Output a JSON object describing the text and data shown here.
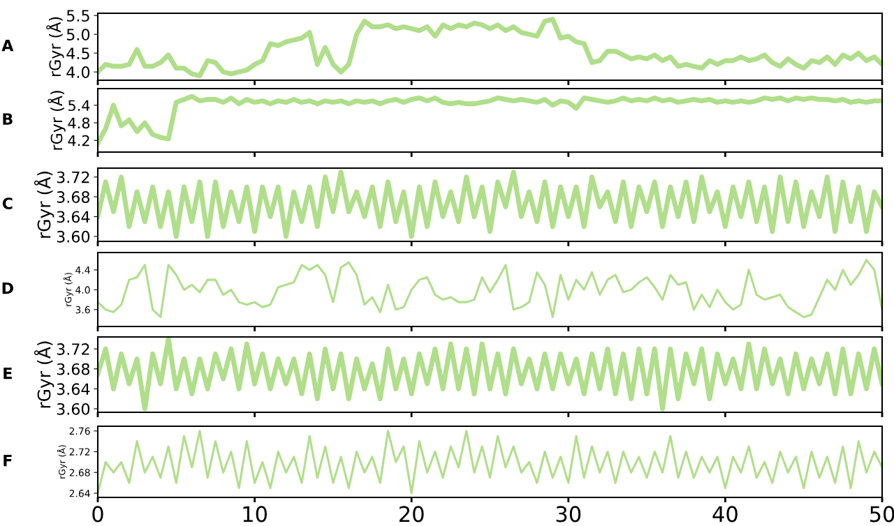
{
  "chart_data": [
    {
      "type": "line",
      "title": "A",
      "ylabel": "rGyr (Å)",
      "ylim": [
        3.78,
        5.56
      ],
      "yticks": [
        {
          "value": 4.0,
          "label": "4.0"
        },
        4.5,
        {
          "value": 5.0,
          "label": "5.0"
        },
        5.5
      ],
      "xlim": [
        0,
        50
      ],
      "xticks": [
        0,
        10,
        20,
        30,
        40,
        50
      ],
      "tick_labels": "y",
      "grid": false,
      "x": [
        0,
        0.5,
        1,
        1.5,
        2,
        2.5,
        3,
        3.5,
        4,
        4.5,
        5,
        5.5,
        6,
        6.5,
        7,
        7.5,
        8,
        8.5,
        9,
        9.5,
        10,
        10.5,
        11,
        11.5,
        12,
        12.5,
        13,
        13.5,
        14,
        14.5,
        15,
        15.5,
        16,
        16.5,
        17,
        17.5,
        18,
        18.5,
        19,
        19.5,
        20,
        20.5,
        21,
        21.5,
        22,
        22.5,
        23,
        23.5,
        24,
        24.5,
        25,
        25.5,
        26,
        26.5,
        27,
        27.5,
        28,
        28.5,
        29,
        29.5,
        30,
        30.5,
        31,
        31.5,
        32,
        32.5,
        33,
        33.5,
        34,
        34.5,
        35,
        35.5,
        36,
        36.5,
        37,
        37.5,
        38,
        38.5,
        39,
        39.5,
        40,
        40.5,
        41,
        41.5,
        42,
        42.5,
        43,
        43.5,
        44,
        44.5,
        45,
        45.5,
        46,
        46.5,
        47,
        47.5,
        48,
        48.5,
        49,
        49.5,
        50
      ],
      "series": [
        {
          "color": "#b0de8a",
          "values": [
            4.0,
            4.2,
            4.15,
            4.15,
            4.2,
            4.6,
            4.15,
            4.15,
            4.25,
            4.45,
            4.1,
            4.1,
            3.95,
            3.9,
            4.3,
            4.25,
            4.0,
            3.95,
            4.0,
            4.05,
            4.2,
            4.3,
            4.75,
            4.7,
            4.8,
            4.85,
            4.9,
            5.05,
            4.2,
            4.65,
            4.2,
            4.0,
            4.2,
            5.0,
            5.35,
            5.2,
            5.2,
            5.25,
            5.15,
            5.2,
            5.15,
            5.1,
            5.2,
            4.95,
            5.25,
            5.15,
            5.25,
            5.2,
            5.3,
            5.25,
            5.15,
            5.25,
            5.1,
            5.2,
            5.05,
            5.0,
            4.95,
            5.35,
            5.4,
            4.9,
            4.95,
            4.8,
            4.75,
            4.25,
            4.3,
            4.55,
            4.55,
            4.45,
            4.35,
            4.4,
            4.35,
            4.45,
            4.3,
            4.4,
            4.15,
            4.2,
            4.15,
            4.1,
            4.3,
            4.2,
            4.3,
            4.3,
            4.4,
            4.3,
            4.35,
            4.45,
            4.25,
            4.15,
            4.35,
            4.2,
            4.1,
            4.3,
            4.25,
            4.4,
            4.2,
            4.45,
            4.35,
            4.5,
            4.3,
            4.4,
            4.2
          ]
        }
      ]
    },
    {
      "type": "line",
      "title": "B",
      "ylabel": "rGyr (Å)",
      "ylim": [
        3.8,
        5.97
      ],
      "yticks": [
        4.2,
        4.8,
        5.4
      ],
      "xlim": [
        0,
        50
      ],
      "xticks": [
        0,
        10,
        20,
        30,
        40,
        50
      ],
      "tick_labels": "y",
      "grid": false,
      "x": [
        0,
        0.5,
        1,
        1.5,
        2,
        2.5,
        3,
        3.5,
        4,
        4.5,
        5,
        5.5,
        6,
        6.5,
        7,
        7.5,
        8,
        8.5,
        9,
        9.5,
        10,
        10.5,
        11,
        11.5,
        12,
        12.5,
        13,
        13.5,
        14,
        14.5,
        15,
        15.5,
        16,
        16.5,
        17,
        17.5,
        18,
        18.5,
        19,
        19.5,
        20,
        20.5,
        21,
        21.5,
        22,
        22.5,
        23,
        23.5,
        24,
        24.5,
        25,
        25.5,
        26,
        26.5,
        27,
        27.5,
        28,
        28.5,
        29,
        29.5,
        30,
        30.5,
        31,
        31.5,
        32,
        32.5,
        33,
        33.5,
        34,
        34.5,
        35,
        35.5,
        36,
        36.5,
        37,
        37.5,
        38,
        38.5,
        39,
        39.5,
        40,
        40.5,
        41,
        41.5,
        42,
        42.5,
        43,
        43.5,
        44,
        44.5,
        45,
        45.5,
        46,
        46.5,
        47,
        47.5,
        48,
        48.5,
        49,
        49.5,
        50
      ],
      "series": [
        {
          "color": "#b0de8a",
          "values": [
            4.1,
            4.6,
            5.4,
            4.7,
            4.9,
            4.5,
            4.8,
            4.4,
            4.3,
            4.25,
            5.5,
            5.6,
            5.7,
            5.55,
            5.6,
            5.6,
            5.5,
            5.65,
            5.45,
            5.6,
            5.5,
            5.55,
            5.45,
            5.55,
            5.5,
            5.6,
            5.5,
            5.55,
            5.45,
            5.55,
            5.5,
            5.55,
            5.45,
            5.55,
            5.5,
            5.55,
            5.45,
            5.55,
            5.6,
            5.5,
            5.6,
            5.65,
            5.55,
            5.65,
            5.5,
            5.45,
            5.5,
            5.45,
            5.45,
            5.5,
            5.55,
            5.65,
            5.6,
            5.55,
            5.6,
            5.55,
            5.5,
            5.6,
            5.4,
            5.55,
            5.5,
            5.3,
            5.65,
            5.6,
            5.55,
            5.5,
            5.55,
            5.65,
            5.55,
            5.6,
            5.55,
            5.65,
            5.55,
            5.6,
            5.5,
            5.55,
            5.6,
            5.55,
            5.6,
            5.5,
            5.55,
            5.5,
            5.55,
            5.5,
            5.55,
            5.65,
            5.6,
            5.65,
            5.55,
            5.65,
            5.6,
            5.65,
            5.6,
            5.6,
            5.55,
            5.6,
            5.5,
            5.55,
            5.5,
            5.55,
            5.55
          ]
        }
      ]
    },
    {
      "type": "line",
      "title": "C",
      "ylabel": "rGyr (Å)",
      "ylim": [
        3.59,
        3.738
      ],
      "yticks": [
        {
          "value": 3.6,
          "label": "3.60"
        },
        {
          "value": 3.64,
          "label": "3.64"
        },
        {
          "value": 3.68,
          "label": "3.68"
        },
        {
          "value": 3.72,
          "label": "3.72"
        }
      ],
      "xlim": [
        0,
        50
      ],
      "xticks": [
        0,
        10,
        20,
        30,
        40,
        50
      ],
      "tick_labels": "y",
      "grid": false,
      "x": [
        0,
        0.5,
        1,
        1.5,
        2,
        2.5,
        3,
        3.5,
        4,
        4.5,
        5,
        5.5,
        6,
        6.5,
        7,
        7.5,
        8,
        8.5,
        9,
        9.5,
        10,
        10.5,
        11,
        11.5,
        12,
        12.5,
        13,
        13.5,
        14,
        14.5,
        15,
        15.5,
        16,
        16.5,
        17,
        17.5,
        18,
        18.5,
        19,
        19.5,
        20,
        20.5,
        21,
        21.5,
        22,
        22.5,
        23,
        23.5,
        24,
        24.5,
        25,
        25.5,
        26,
        26.5,
        27,
        27.5,
        28,
        28.5,
        29,
        29.5,
        30,
        30.5,
        31,
        31.5,
        32,
        32.5,
        33,
        33.5,
        34,
        34.5,
        35,
        35.5,
        36,
        36.5,
        37,
        37.5,
        38,
        38.5,
        39,
        39.5,
        40,
        40.5,
        41,
        41.5,
        42,
        42.5,
        43,
        43.5,
        44,
        44.5,
        45,
        45.5,
        46,
        46.5,
        47,
        47.5,
        48,
        48.5,
        49,
        49.5,
        50
      ],
      "series": [
        {
          "color": "#b0de8a",
          "values": [
            3.64,
            3.71,
            3.65,
            3.72,
            3.62,
            3.69,
            3.63,
            3.7,
            3.62,
            3.69,
            3.6,
            3.7,
            3.63,
            3.71,
            3.6,
            3.71,
            3.62,
            3.69,
            3.63,
            3.7,
            3.61,
            3.7,
            3.64,
            3.7,
            3.6,
            3.69,
            3.63,
            3.7,
            3.62,
            3.72,
            3.65,
            3.73,
            3.65,
            3.69,
            3.64,
            3.7,
            3.62,
            3.71,
            3.63,
            3.69,
            3.6,
            3.7,
            3.62,
            3.71,
            3.64,
            3.69,
            3.63,
            3.72,
            3.64,
            3.7,
            3.61,
            3.71,
            3.66,
            3.73,
            3.64,
            3.69,
            3.63,
            3.71,
            3.62,
            3.7,
            3.64,
            3.7,
            3.62,
            3.72,
            3.66,
            3.69,
            3.63,
            3.71,
            3.62,
            3.7,
            3.65,
            3.71,
            3.62,
            3.7,
            3.64,
            3.71,
            3.63,
            3.72,
            3.65,
            3.69,
            3.62,
            3.7,
            3.64,
            3.71,
            3.63,
            3.7,
            3.61,
            3.72,
            3.63,
            3.71,
            3.62,
            3.69,
            3.64,
            3.72,
            3.61,
            3.71,
            3.63,
            3.7,
            3.61,
            3.69,
            3.66
          ]
        }
      ]
    },
    {
      "type": "line",
      "title": "D",
      "ylabel": "rGyr (Å)",
      "ylim": [
        3.26,
        4.75
      ],
      "yticks": [
        3.6,
        {
          "value": 4.0,
          "label": "4.0"
        },
        4.4
      ],
      "xlim": [
        0,
        50
      ],
      "xticks": [
        0,
        10,
        20,
        30,
        40,
        50
      ],
      "tick_labels": "y",
      "grid": false,
      "x": [
        0,
        0.5,
        1,
        1.5,
        2,
        2.5,
        3,
        3.5,
        4,
        4.5,
        5,
        5.5,
        6,
        6.5,
        7,
        7.5,
        8,
        8.5,
        9,
        9.5,
        10,
        10.5,
        11,
        11.5,
        12,
        12.5,
        13,
        13.5,
        14,
        14.5,
        15,
        15.5,
        16,
        16.5,
        17,
        17.5,
        18,
        18.5,
        19,
        19.5,
        20,
        20.5,
        21,
        21.5,
        22,
        22.5,
        23,
        23.5,
        24,
        24.5,
        25,
        25.5,
        26,
        26.5,
        27,
        27.5,
        28,
        28.5,
        29,
        29.5,
        30,
        30.5,
        31,
        31.5,
        32,
        32.5,
        33,
        33.5,
        34,
        34.5,
        35,
        35.5,
        36,
        36.5,
        37,
        37.5,
        38,
        38.5,
        39,
        39.5,
        40,
        40.5,
        41,
        41.5,
        42,
        42.5,
        43,
        43.5,
        44,
        44.5,
        45,
        45.5,
        46,
        46.5,
        47,
        47.5,
        48,
        48.5,
        49,
        49.5,
        50
      ],
      "series": [
        {
          "color": "#b0de8a",
          "values": [
            3.75,
            3.6,
            3.55,
            3.7,
            4.2,
            4.25,
            4.5,
            3.6,
            3.45,
            4.5,
            4.3,
            4.0,
            4.1,
            3.95,
            4.2,
            4.2,
            3.9,
            4.0,
            3.75,
            3.7,
            3.75,
            3.65,
            3.7,
            4.05,
            4.1,
            4.15,
            4.5,
            4.4,
            4.5,
            4.3,
            3.75,
            4.45,
            4.55,
            4.3,
            3.7,
            3.85,
            3.55,
            4.1,
            3.6,
            3.65,
            4.0,
            4.2,
            4.25,
            3.9,
            3.8,
            3.85,
            3.75,
            3.75,
            3.8,
            4.25,
            3.95,
            4.2,
            4.5,
            3.6,
            3.65,
            3.75,
            4.35,
            4.1,
            3.45,
            4.3,
            3.8,
            4.2,
            4.0,
            4.35,
            3.9,
            4.2,
            4.3,
            3.95,
            4.0,
            4.15,
            4.25,
            4.05,
            3.8,
            4.3,
            4.1,
            4.15,
            3.6,
            3.9,
            3.65,
            4.0,
            3.75,
            3.6,
            3.7,
            4.4,
            3.9,
            3.8,
            3.85,
            3.9,
            3.65,
            3.55,
            3.45,
            3.5,
            3.85,
            4.2,
            4.0,
            4.4,
            4.1,
            4.3,
            4.6,
            4.4,
            3.6
          ]
        }
      ]
    },
    {
      "type": "line",
      "title": "E",
      "ylabel": "rGyr (Å)",
      "ylim": [
        3.593,
        3.744
      ],
      "yticks": [
        {
          "value": 3.6,
          "label": "3.60"
        },
        {
          "value": 3.64,
          "label": "3.64"
        },
        {
          "value": 3.68,
          "label": "3.68"
        },
        {
          "value": 3.72,
          "label": "3.72"
        }
      ],
      "xlim": [
        0,
        50
      ],
      "xticks": [
        0,
        10,
        20,
        30,
        40,
        50
      ],
      "tick_labels": "y",
      "grid": false,
      "x": [
        0,
        0.5,
        1,
        1.5,
        2,
        2.5,
        3,
        3.5,
        4,
        4.5,
        5,
        5.5,
        6,
        6.5,
        7,
        7.5,
        8,
        8.5,
        9,
        9.5,
        10,
        10.5,
        11,
        11.5,
        12,
        12.5,
        13,
        13.5,
        14,
        14.5,
        15,
        15.5,
        16,
        16.5,
        17,
        17.5,
        18,
        18.5,
        19,
        19.5,
        20,
        20.5,
        21,
        21.5,
        22,
        22.5,
        23,
        23.5,
        24,
        24.5,
        25,
        25.5,
        26,
        26.5,
        27,
        27.5,
        28,
        28.5,
        29,
        29.5,
        30,
        30.5,
        31,
        31.5,
        32,
        32.5,
        33,
        33.5,
        34,
        34.5,
        35,
        35.5,
        36,
        36.5,
        37,
        37.5,
        38,
        38.5,
        39,
        39.5,
        40,
        40.5,
        41,
        41.5,
        42,
        42.5,
        43,
        43.5,
        44,
        44.5,
        45,
        45.5,
        46,
        46.5,
        47,
        47.5,
        48,
        48.5,
        49,
        49.5,
        50
      ],
      "series": [
        {
          "color": "#b0de8a",
          "values": [
            3.67,
            3.72,
            3.64,
            3.71,
            3.65,
            3.7,
            3.6,
            3.71,
            3.65,
            3.74,
            3.64,
            3.7,
            3.63,
            3.7,
            3.64,
            3.71,
            3.66,
            3.72,
            3.64,
            3.73,
            3.65,
            3.71,
            3.64,
            3.7,
            3.65,
            3.7,
            3.63,
            3.71,
            3.62,
            3.72,
            3.64,
            3.71,
            3.62,
            3.7,
            3.64,
            3.69,
            3.62,
            3.72,
            3.64,
            3.7,
            3.63,
            3.71,
            3.65,
            3.72,
            3.64,
            3.73,
            3.64,
            3.72,
            3.63,
            3.73,
            3.64,
            3.71,
            3.63,
            3.72,
            3.65,
            3.7,
            3.64,
            3.71,
            3.64,
            3.71,
            3.65,
            3.7,
            3.63,
            3.71,
            3.64,
            3.72,
            3.63,
            3.71,
            3.62,
            3.72,
            3.63,
            3.72,
            3.6,
            3.72,
            3.62,
            3.71,
            3.65,
            3.72,
            3.62,
            3.71,
            3.65,
            3.7,
            3.64,
            3.73,
            3.64,
            3.72,
            3.65,
            3.7,
            3.63,
            3.71,
            3.64,
            3.7,
            3.65,
            3.71,
            3.63,
            3.72,
            3.63,
            3.71,
            3.64,
            3.72,
            3.65
          ]
        }
      ]
    },
    {
      "type": "line",
      "title": "F",
      "ylabel": "rGyr (Å)",
      "ylim": [
        2.632,
        2.769
      ],
      "yticks": [
        2.64,
        2.68,
        2.72,
        2.76
      ],
      "xlim": [
        0,
        50
      ],
      "xticks": [
        0,
        10,
        20,
        30,
        40,
        50
      ],
      "grid": false,
      "x": [
        0,
        0.5,
        1,
        1.5,
        2,
        2.5,
        3,
        3.5,
        4,
        4.5,
        5,
        5.5,
        6,
        6.5,
        7,
        7.5,
        8,
        8.5,
        9,
        9.5,
        10,
        10.5,
        11,
        11.5,
        12,
        12.5,
        13,
        13.5,
        14,
        14.5,
        15,
        15.5,
        16,
        16.5,
        17,
        17.5,
        18,
        18.5,
        19,
        19.5,
        20,
        20.5,
        21,
        21.5,
        22,
        22.5,
        23,
        23.5,
        24,
        24.5,
        25,
        25.5,
        26,
        26.5,
        27,
        27.5,
        28,
        28.5,
        29,
        29.5,
        30,
        30.5,
        31,
        31.5,
        32,
        32.5,
        33,
        33.5,
        34,
        34.5,
        35,
        35.5,
        36,
        36.5,
        37,
        37.5,
        38,
        38.5,
        39,
        39.5,
        40,
        40.5,
        41,
        41.5,
        42,
        42.5,
        43,
        43.5,
        44,
        44.5,
        45,
        45.5,
        46,
        46.5,
        47,
        47.5,
        48,
        48.5,
        49,
        49.5,
        50
      ],
      "series": [
        {
          "color": "#b0de8a",
          "values": [
            2.64,
            2.7,
            2.68,
            2.7,
            2.66,
            2.74,
            2.68,
            2.71,
            2.67,
            2.73,
            2.66,
            2.75,
            2.69,
            2.76,
            2.67,
            2.74,
            2.68,
            2.72,
            2.65,
            2.74,
            2.66,
            2.7,
            2.65,
            2.72,
            2.68,
            2.71,
            2.66,
            2.75,
            2.67,
            2.73,
            2.66,
            2.71,
            2.65,
            2.72,
            2.68,
            2.71,
            2.66,
            2.76,
            2.7,
            2.73,
            2.64,
            2.74,
            2.68,
            2.72,
            2.67,
            2.73,
            2.69,
            2.76,
            2.68,
            2.73,
            2.67,
            2.75,
            2.69,
            2.73,
            2.68,
            2.7,
            2.66,
            2.72,
            2.67,
            2.71,
            2.66,
            2.75,
            2.67,
            2.73,
            2.68,
            2.72,
            2.66,
            2.72,
            2.68,
            2.71,
            2.67,
            2.72,
            2.68,
            2.75,
            2.67,
            2.72,
            2.67,
            2.71,
            2.68,
            2.71,
            2.65,
            2.71,
            2.68,
            2.73,
            2.67,
            2.7,
            2.66,
            2.72,
            2.68,
            2.71,
            2.65,
            2.72,
            2.67,
            2.71,
            2.66,
            2.73,
            2.65,
            2.74,
            2.68,
            2.72,
            2.69
          ]
        }
      ]
    }
  ]
}
